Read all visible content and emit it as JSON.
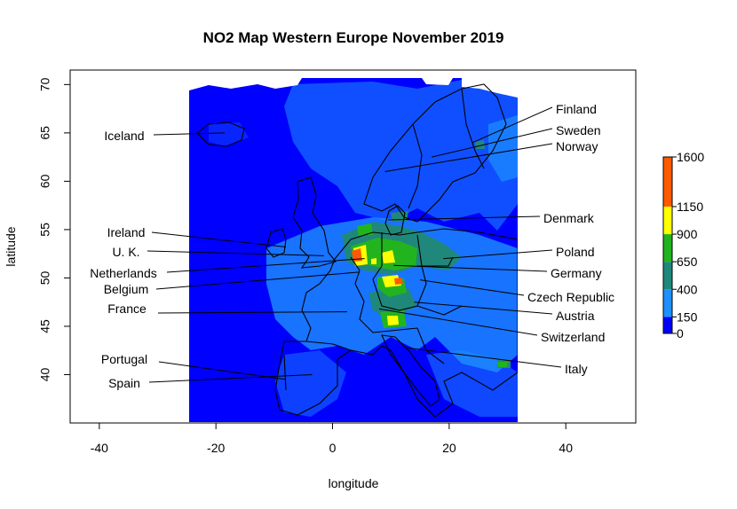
{
  "title": "NO2 Map Western Europe November 2019",
  "x_axis": {
    "label": "longitude",
    "ticks": [
      -40,
      -20,
      0,
      20,
      40
    ],
    "range": [
      -45,
      52
    ]
  },
  "y_axis": {
    "label": "latitude",
    "ticks": [
      40,
      45,
      50,
      55,
      60,
      65,
      70
    ],
    "range": [
      35,
      71.5
    ]
  },
  "data_extent": {
    "lon": [
      -24.5,
      31.5
    ],
    "lat": [
      35,
      70.5
    ]
  },
  "legend": {
    "bins": [
      {
        "from": 0,
        "to": 150,
        "color": "#0000ff"
      },
      {
        "from": 150,
        "to": 400,
        "color": "#1e90ff"
      },
      {
        "from": 400,
        "to": 650,
        "color": "#20887a"
      },
      {
        "from": 650,
        "to": 900,
        "color": "#22b41f"
      },
      {
        "from": 900,
        "to": 1150,
        "color": "#ffff00"
      },
      {
        "from": 1150,
        "to": 1600,
        "color": "#ff5a00"
      }
    ],
    "tick_labels": [
      "0",
      "150",
      "400",
      "650",
      "900",
      "1150",
      "1600"
    ]
  },
  "countries": [
    {
      "name": "Finland",
      "point": [
        24.0,
        64.0
      ]
    },
    {
      "name": "Sweden",
      "point": [
        17.0,
        62.5
      ]
    },
    {
      "name": "Norway",
      "point": [
        9.0,
        61.0
      ]
    },
    {
      "name": "Iceland",
      "point": [
        -18.5,
        65.0
      ]
    },
    {
      "name": "Denmark",
      "point": [
        9.5,
        56.0
      ]
    },
    {
      "name": "Ireland",
      "point": [
        -8.0,
        53.2
      ]
    },
    {
      "name": "U. K.",
      "point": [
        -1.5,
        52.3
      ]
    },
    {
      "name": "Netherlands",
      "point": [
        5.5,
        52.0
      ]
    },
    {
      "name": "Poland",
      "point": [
        19.0,
        52.0
      ]
    },
    {
      "name": "Germany",
      "point": [
        10.5,
        51.3
      ]
    },
    {
      "name": "Belgium",
      "point": [
        4.5,
        50.6
      ]
    },
    {
      "name": "Czech Republic",
      "point": [
        15.0,
        49.8
      ]
    },
    {
      "name": "Austria",
      "point": [
        14.0,
        47.5
      ]
    },
    {
      "name": "France",
      "point": [
        2.5,
        46.5
      ]
    },
    {
      "name": "Switzerland",
      "point": [
        8.0,
        46.8
      ]
    },
    {
      "name": "Italy",
      "point": [
        12.5,
        42.8
      ]
    },
    {
      "name": "Portugal",
      "point": [
        -8.0,
        39.5
      ]
    },
    {
      "name": "Spain",
      "point": [
        -3.5,
        40.0
      ]
    }
  ]
}
